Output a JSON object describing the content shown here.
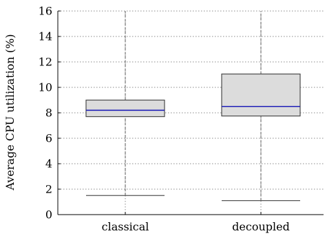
{
  "chart_data": {
    "type": "boxplot",
    "title": "",
    "xlabel": "",
    "ylabel": "Average CPU utilization (%)",
    "ylim": [
      0,
      16
    ],
    "yticks": [
      0,
      2,
      4,
      6,
      8,
      10,
      12,
      14,
      16
    ],
    "grid": true,
    "legend": "none",
    "categories": [
      "classical",
      "decoupled"
    ],
    "boxes": [
      {
        "category": "classical",
        "whisker_low": 1.5,
        "q1": 7.7,
        "median": 8.2,
        "q3": 9.0,
        "whisker_high": 16
      },
      {
        "category": "decoupled",
        "whisker_low": 1.1,
        "q1": 7.75,
        "median": 8.5,
        "q3": 11.05,
        "whisker_high": 16
      }
    ],
    "colors": {
      "box_fill": "#dcdcdc",
      "box_stroke": "#4a4a4a",
      "median": "#1f1fb8",
      "whisker": "#555555",
      "grid": "#8a8a8a",
      "axis": "#000000"
    }
  }
}
